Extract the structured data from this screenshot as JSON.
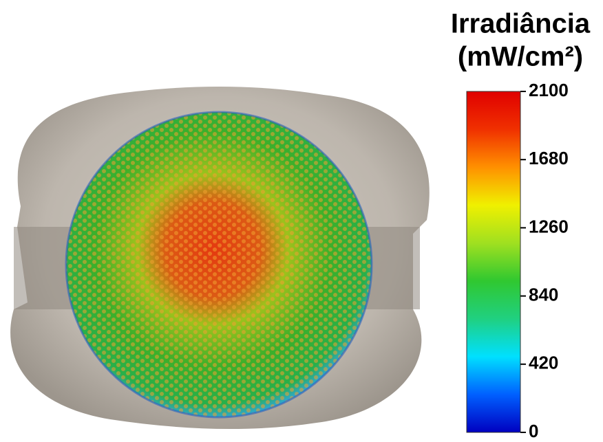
{
  "chart_data": {
    "type": "colorbar",
    "title": "Irradiância",
    "subtitle": "(mW/cm²)",
    "ylim": [
      0,
      2100
    ],
    "yticks": [
      0,
      420,
      840,
      1260,
      1680,
      2100
    ],
    "colormap": [
      "#0000c0",
      "#0060ff",
      "#00e0ff",
      "#20d080",
      "#30c830",
      "#a0e020",
      "#f0f000",
      "#ff9000",
      "#f03000",
      "#e00000"
    ]
  }
}
